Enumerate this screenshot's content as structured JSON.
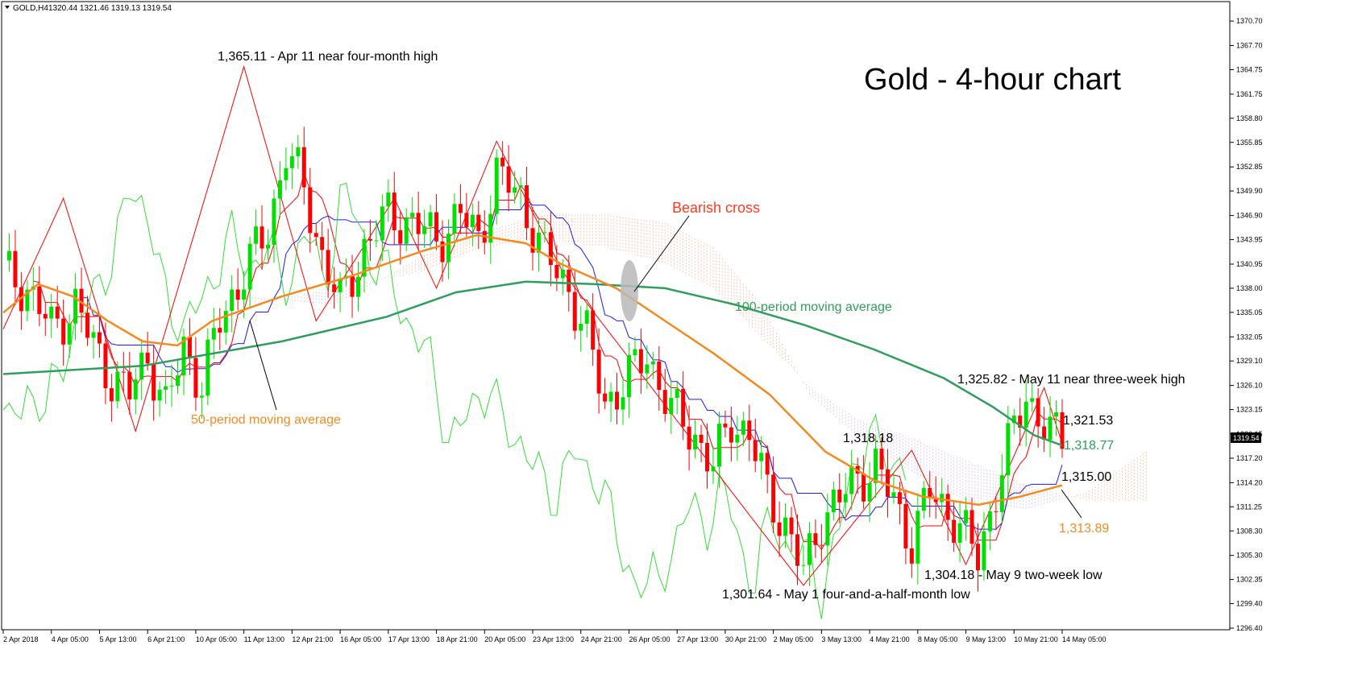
{
  "header": {
    "symbol_label": "GOLD,H4",
    "ohlc": "1320.44 1321.46 1319.13 1319.54"
  },
  "title": "Gold - 4-hour chart",
  "colors": {
    "bull_candle": "#00e000",
    "bear_candle": "#ff0000",
    "ma50": "#f58a1f",
    "ma100": "#2e9e5e",
    "kijun": "#1a1aff",
    "tenkan": "#ff0000",
    "chikou": "#33dd33",
    "cloud_a": "#f7a07a",
    "cloud_b": "#c9a6e0",
    "zigzag": "#ff0000",
    "current_price_bg": "#000000"
  },
  "annotations": {
    "bearish_cross": "Bearish cross",
    "ma100_label": "100-period moving average",
    "ma50_label": "50-period moving average",
    "high_apr11": "1,365.11 - Apr 11 near four-month high",
    "low_may1": "1,301.64 - May 1 four-and-a-half-month low",
    "low_may9": "1,304.18 - May 9 two-week low",
    "high_may11": "1,325.82 - May 11 near three-week high",
    "level_1318_18": "1,318.18",
    "level_1321_53": "1,321.53",
    "level_1318_77": "1,318.77",
    "level_1315_00": "1,315.00",
    "level_1313_89": "1,313.89"
  },
  "current_price": "1319.54",
  "chart_data": {
    "type": "line",
    "ylim": [
      1296.4,
      1371.5
    ],
    "y_ticks": [
      "1370.70",
      "1367.70",
      "1364.75",
      "1361.75",
      "1358.80",
      "1355.85",
      "1352.85",
      "1349.90",
      "1346.90",
      "1343.95",
      "1340.95",
      "1338.00",
      "1335.05",
      "1332.05",
      "1329.10",
      "1326.10",
      "1323.15",
      "1320.15",
      "1317.20",
      "1314.20",
      "1311.25",
      "1308.30",
      "1305.30",
      "1302.35",
      "1299.40",
      "1296.40"
    ],
    "x_ticks": [
      "2 Apr 2018",
      "4 Apr 05:00",
      "5 Apr 13:00",
      "6 Apr 21:00",
      "10 Apr 05:00",
      "11 Apr 13:00",
      "12 Apr 21:00",
      "16 Apr 05:00",
      "17 Apr 13:00",
      "18 Apr 21:00",
      "20 Apr 05:00",
      "23 Apr 13:00",
      "24 Apr 21:00",
      "26 Apr 05:00",
      "27 Apr 13:00",
      "30 Apr 21:00",
      "2 May 05:00",
      "3 May 13:00",
      "4 May 21:00",
      "8 May 05:00",
      "9 May 13:00",
      "10 May 21:00",
      "14 May 05:00"
    ],
    "series": [
      {
        "name": "100-period moving average",
        "points": [
          [
            0,
            1327.5
          ],
          [
            20,
            1328.5
          ],
          [
            40,
            1331.5
          ],
          [
            55,
            1334.5
          ],
          [
            65,
            1337.5
          ],
          [
            75,
            1338.8
          ],
          [
            85,
            1338.5
          ],
          [
            95,
            1338.0
          ],
          [
            105,
            1336.0
          ],
          [
            115,
            1333.5
          ],
          [
            125,
            1330.5
          ],
          [
            135,
            1327.0
          ],
          [
            142,
            1323.5
          ],
          [
            148,
            1320.0
          ],
          [
            152,
            1318.77
          ]
        ]
      },
      {
        "name": "50-period moving average",
        "points": [
          [
            0,
            1335.0
          ],
          [
            5,
            1338.5
          ],
          [
            10,
            1337.0
          ],
          [
            15,
            1334.0
          ],
          [
            20,
            1331.5
          ],
          [
            25,
            1331.0
          ],
          [
            30,
            1334.0
          ],
          [
            40,
            1337.0
          ],
          [
            50,
            1339.5
          ],
          [
            60,
            1342.5
          ],
          [
            68,
            1344.5
          ],
          [
            75,
            1343.5
          ],
          [
            80,
            1341.0
          ],
          [
            88,
            1338.0
          ],
          [
            95,
            1334.0
          ],
          [
            102,
            1330.0
          ],
          [
            110,
            1325.0
          ],
          [
            118,
            1318.0
          ],
          [
            125,
            1314.5
          ],
          [
            132,
            1312.5
          ],
          [
            140,
            1311.5
          ],
          [
            146,
            1312.5
          ],
          [
            152,
            1313.89
          ]
        ]
      }
    ],
    "highlights": [
      {
        "label": "1,365.11 - Apr 11 near four-month high",
        "value": 1365.11
      },
      {
        "label": "1,301.64 - May 1 four-and-a-half-month low",
        "value": 1301.64
      },
      {
        "label": "1,304.18 - May 9 two-week low",
        "value": 1304.18
      },
      {
        "label": "1,325.82 - May 11 near three-week high",
        "value": 1325.82
      },
      {
        "label": "1,318.18",
        "value": 1318.18
      },
      {
        "label": "1,321.53",
        "value": 1321.53
      },
      {
        "label": "1,318.77",
        "value": 1318.77
      },
      {
        "label": "1,315.00",
        "value": 1315.0
      },
      {
        "label": "1,313.89",
        "value": 1313.89
      }
    ],
    "grid": false
  }
}
